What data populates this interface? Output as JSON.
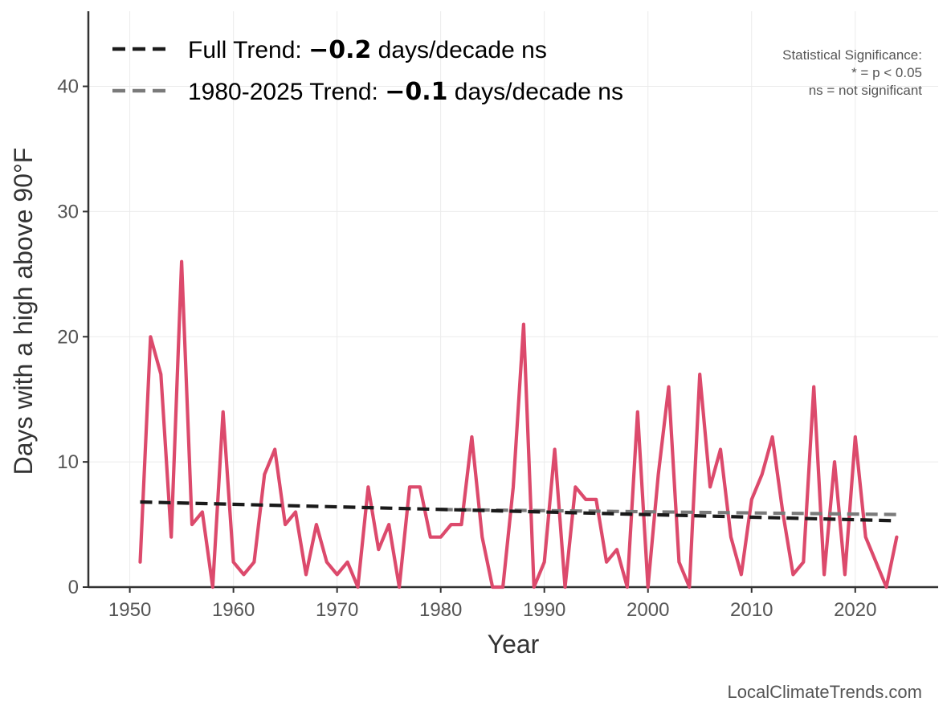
{
  "chart_data": {
    "type": "line",
    "xlabel": "Year",
    "ylabel": "Days with a high above 90°F",
    "xlim": [
      1946,
      2028
    ],
    "ylim": [
      0,
      46
    ],
    "xticks": [
      1950,
      1960,
      1970,
      1980,
      1990,
      2000,
      2010,
      2020
    ],
    "yticks": [
      0,
      10,
      20,
      30,
      40
    ],
    "grid": true,
    "legend_position": "top-left",
    "series": [
      {
        "role": "observed",
        "color": "#dc4a6c",
        "x": [
          1951,
          1952,
          1953,
          1954,
          1955,
          1956,
          1957,
          1958,
          1959,
          1960,
          1961,
          1962,
          1963,
          1964,
          1965,
          1966,
          1967,
          1968,
          1969,
          1970,
          1971,
          1972,
          1973,
          1974,
          1975,
          1976,
          1977,
          1978,
          1979,
          1980,
          1981,
          1982,
          1983,
          1984,
          1985,
          1986,
          1987,
          1988,
          1989,
          1990,
          1991,
          1992,
          1993,
          1994,
          1995,
          1996,
          1997,
          1998,
          1999,
          2000,
          2001,
          2002,
          2003,
          2004,
          2005,
          2006,
          2007,
          2008,
          2009,
          2010,
          2011,
          2012,
          2013,
          2014,
          2015,
          2016,
          2017,
          2018,
          2019,
          2020,
          2021,
          2022,
          2023,
          2024
        ],
        "values": [
          2,
          20,
          17,
          4,
          26,
          5,
          6,
          0,
          14,
          2,
          1,
          2,
          9,
          11,
          5,
          6,
          1,
          5,
          2,
          1,
          2,
          0,
          8,
          3,
          5,
          0,
          8,
          8,
          4,
          4,
          5,
          5,
          12,
          4,
          0,
          0,
          8,
          21,
          0,
          2,
          11,
          0,
          8,
          7,
          7,
          2,
          3,
          0,
          14,
          0,
          9,
          16,
          2,
          0,
          17,
          8,
          11,
          4,
          1,
          7,
          9,
          12,
          6,
          1,
          2,
          16,
          1,
          10,
          1,
          12,
          4,
          2,
          0,
          4
        ]
      },
      {
        "name": "Full Trend",
        "color": "#1a1a1a",
        "style": "dashed",
        "x": [
          1951,
          2024
        ],
        "values": [
          6.8,
          5.3
        ]
      },
      {
        "name": "1980-2025 Trend",
        "color": "#7a7a7a",
        "style": "dashed",
        "x": [
          1980,
          2024
        ],
        "values": [
          6.2,
          5.8
        ]
      }
    ],
    "legend": [
      {
        "prefix": "Full Trend: ",
        "value": "−0.2",
        "suffix": " days/decade ns",
        "color": "#1a1a1a"
      },
      {
        "prefix": "1980-2025 Trend: ",
        "value": "−0.1",
        "suffix": " days/decade ns",
        "color": "#7a7a7a"
      }
    ],
    "annotations": {
      "significance": [
        "Statistical Significance:",
        "* = p < 0.05",
        "ns = not significant"
      ],
      "credit": "LocalClimateTrends.com"
    }
  }
}
